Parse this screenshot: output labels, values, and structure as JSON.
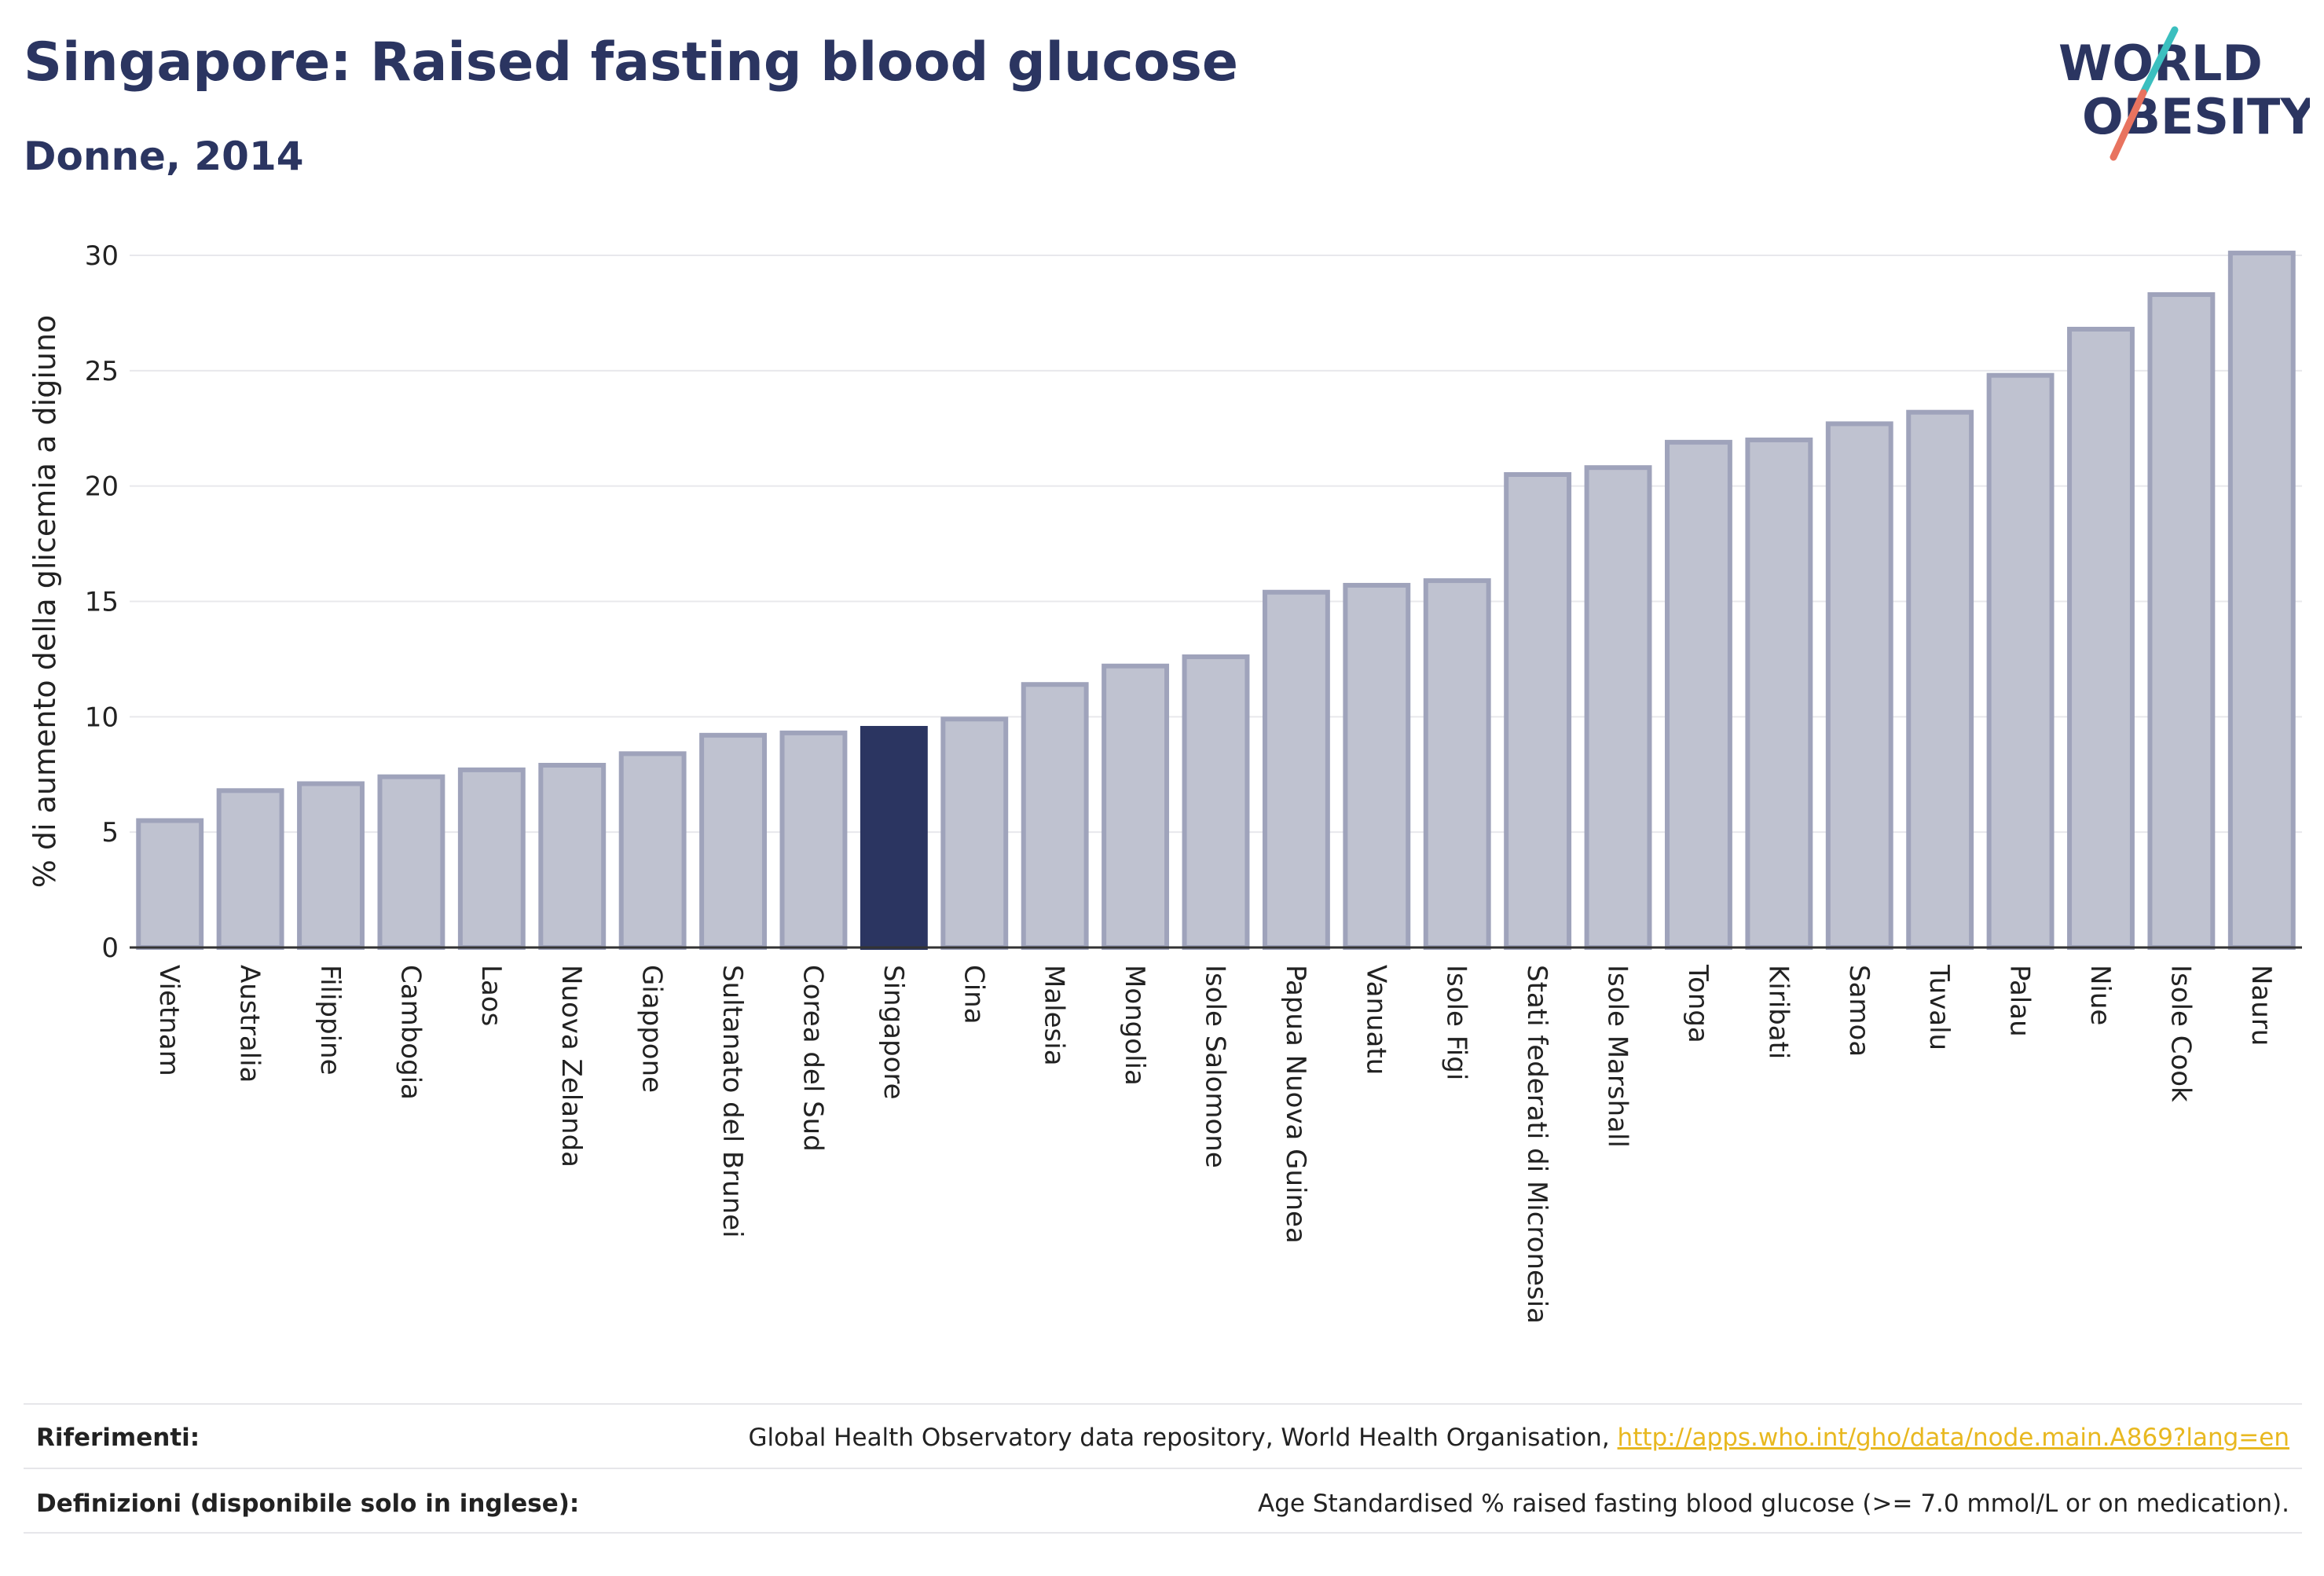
{
  "header": {
    "title": "Singapore: Raised fasting blood glucose",
    "subtitle": "Donne, 2014",
    "logo_line1": "WORLD",
    "logo_line2": "OBESITY"
  },
  "colors": {
    "bar": "#bfc2d0",
    "bar_border": "#9fa3bb",
    "highlight": "#2b3561",
    "grid": "#e8e8ec",
    "axis": "#333333",
    "logo_teal": "#3bbfbf",
    "logo_coral": "#e8735f"
  },
  "chart_data": {
    "type": "bar",
    "ylabel": "% di aumento della glicemia a digiuno",
    "ylim": [
      0,
      30
    ],
    "yticks": [
      0,
      5,
      10,
      15,
      20,
      25,
      30
    ],
    "grid": true,
    "highlight": "Singapore",
    "categories": [
      "Vietnam",
      "Australia",
      "Filippine",
      "Cambogia",
      "Laos",
      "Nuova Zelanda",
      "Giappone",
      "Sultanato del Brunei",
      "Corea del Sud",
      "Singapore",
      "Cina",
      "Malesia",
      "Mongolia",
      "Isole Salomone",
      "Papua Nuova Guinea",
      "Vanuatu",
      "Isole Figi",
      "Stati federati di Micronesia",
      "Isole Marshall",
      "Tonga",
      "Kiribati",
      "Samoa",
      "Tuvalu",
      "Palau",
      "Niue",
      "Isole Cook",
      "Nauru"
    ],
    "values": [
      5.5,
      6.8,
      7.1,
      7.4,
      7.7,
      7.9,
      8.4,
      9.2,
      9.3,
      9.5,
      9.9,
      11.4,
      12.2,
      12.6,
      15.4,
      15.7,
      15.9,
      20.5,
      20.8,
      21.9,
      22.0,
      22.7,
      23.2,
      24.8,
      26.8,
      28.3,
      30.1
    ]
  },
  "references": {
    "label": "Riferimenti:",
    "text": "Global Health Observatory data repository, World Health Organisation, ",
    "url": "http://apps.who.int/gho/data/node.main.A869?lang=en"
  },
  "definitions": {
    "label": "Definizioni (disponibile solo in inglese):",
    "text": "Age Standardised % raised fasting blood glucose (>= 7.0 mmol/L or on medication)."
  }
}
